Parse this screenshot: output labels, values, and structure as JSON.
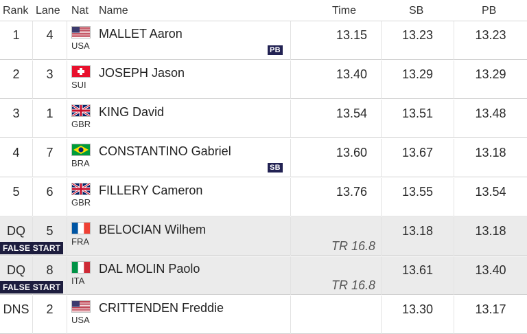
{
  "header": {
    "rank": "Rank",
    "lane": "Lane",
    "nat": "Nat",
    "name": "Name",
    "time": "Time",
    "sb": "SB",
    "pb": "PB"
  },
  "rows": [
    {
      "rank": "1",
      "lane": "4",
      "nat": "USA",
      "flag": "us-flag-icon",
      "name": "MALLET Aaron",
      "time": "13.15",
      "sb": "13.23",
      "pb": "13.23",
      "badge": "PB"
    },
    {
      "rank": "2",
      "lane": "3",
      "nat": "SUI",
      "flag": "ch-flag-icon",
      "name": "JOSEPH Jason",
      "time": "13.40",
      "sb": "13.29",
      "pb": "13.29"
    },
    {
      "rank": "3",
      "lane": "1",
      "nat": "GBR",
      "flag": "gb-flag-icon",
      "name": "KING David",
      "time": "13.54",
      "sb": "13.51",
      "pb": "13.48"
    },
    {
      "rank": "4",
      "lane": "7",
      "nat": "BRA",
      "flag": "br-flag-icon",
      "name": "CONSTANTINO Gabriel",
      "time": "13.60",
      "sb": "13.67",
      "pb": "13.18",
      "badge": "SB"
    },
    {
      "rank": "5",
      "lane": "6",
      "nat": "GBR",
      "flag": "gb-flag-icon",
      "name": "FILLERY Cameron",
      "time": "13.76",
      "sb": "13.55",
      "pb": "13.54"
    },
    {
      "rank": "DQ",
      "lane": "5",
      "nat": "FRA",
      "flag": "fr-flag-icon",
      "name": "BELOCIAN Wilhem",
      "time": "",
      "sb": "13.18",
      "pb": "13.18",
      "note": "FALSE START",
      "rule": "TR 16.8"
    },
    {
      "rank": "DQ",
      "lane": "8",
      "nat": "ITA",
      "flag": "it-flag-icon",
      "name": "DAL MOLIN Paolo",
      "time": "",
      "sb": "13.61",
      "pb": "13.40",
      "note": "FALSE START",
      "rule": "TR 16.8"
    },
    {
      "rank": "DNS",
      "lane": "2",
      "nat": "USA",
      "flag": "us-flag-icon",
      "name": "CRITTENDEN Freddie",
      "time": "",
      "sb": "13.30",
      "pb": "13.17"
    }
  ],
  "colors": {
    "badge_bg": "#222253",
    "false_start_bg": "#1d1d3e",
    "dq_row_bg": "#ebebeb"
  }
}
